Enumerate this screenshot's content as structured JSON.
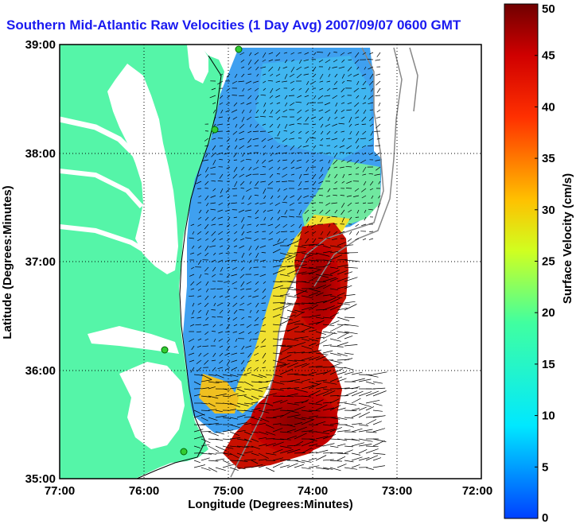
{
  "title": "Southern Mid-Atlantic Raw Velocities (1 Day Avg) 2007/09/07 0600 GMT",
  "map": {
    "xlabel": "Longitude (Degrees:Minutes)",
    "ylabel": "Latitude (Degrees:Minutes)",
    "lon_ticks": [
      "77:00",
      "76:00",
      "75:00",
      "74:00",
      "73:00",
      "72:00"
    ],
    "lat_ticks": [
      "39:00",
      "38:00",
      "37:00",
      "36:00",
      "35:00"
    ],
    "land_color": "#55f5a8",
    "water_color": "#ffffff",
    "station_color": "#33cc33"
  },
  "colorbar": {
    "label": "Surface Velocity (cm/s)",
    "ticks": [
      "50",
      "45",
      "40",
      "35",
      "30",
      "25",
      "20",
      "15",
      "10",
      "5",
      "0"
    ],
    "min": 0,
    "max": 50
  }
}
